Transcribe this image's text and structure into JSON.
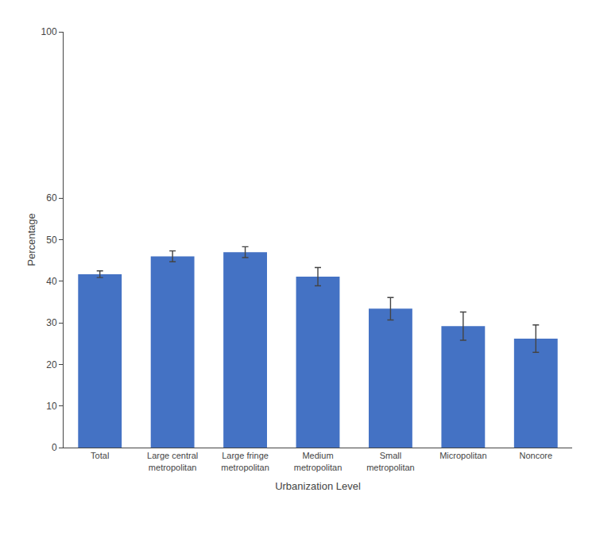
{
  "chart_data": {
    "type": "bar",
    "categories": [
      "Total",
      "Large central\nmetropolitan",
      "Large fringe\nmetropolitan",
      "Medium\nmetropolitan",
      "Small\nmetropolitan",
      "Micropolitan",
      "Noncore"
    ],
    "values": [
      41.7,
      46.0,
      47.0,
      41.1,
      33.4,
      29.2,
      26.2
    ],
    "errors": [
      0.8,
      1.3,
      1.3,
      2.2,
      2.7,
      3.4,
      3.3
    ],
    "color": "#4472C4",
    "xlabel": "Urbanization Level",
    "ylabel": "Percentage",
    "ylim": [
      0,
      100
    ],
    "yticks": [
      0,
      10,
      20,
      30,
      40,
      50,
      60,
      100
    ],
    "grid": false
  }
}
